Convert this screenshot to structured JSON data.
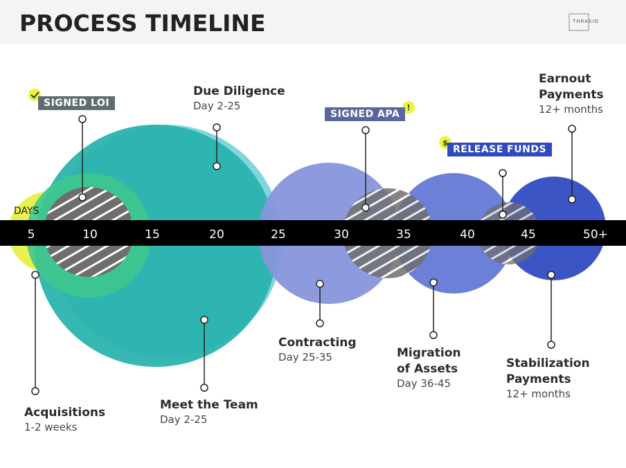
{
  "header": {
    "title": "PROCESS TIMELINE",
    "logo": "THRASIO"
  },
  "axis": {
    "label": "DAYS",
    "ticks": [
      "5",
      "10",
      "15",
      "20",
      "25",
      "30",
      "35",
      "40",
      "45",
      "50+"
    ]
  },
  "tags": [
    {
      "label": "SIGNED LOI"
    },
    {
      "label": "SIGNED APA",
      "icon": "!"
    },
    {
      "label": "RELEASE FUNDS",
      "icon": "$"
    }
  ],
  "stages": [
    {
      "title": "Acquisitions",
      "detail": "1-2 weeks"
    },
    {
      "title": "Meet the Team",
      "detail": "Day 2-25"
    },
    {
      "title": "Due Diligence",
      "detail": "Day 2-25"
    },
    {
      "title": "Contracting",
      "detail": "Day 25-35"
    },
    {
      "title": "Migration of Assets",
      "detail": "Day 36-45"
    },
    {
      "title": "Stabilization Payments",
      "detail": "12+ months"
    },
    {
      "title": "Earnout Payments",
      "detail": "12+ months"
    }
  ]
}
